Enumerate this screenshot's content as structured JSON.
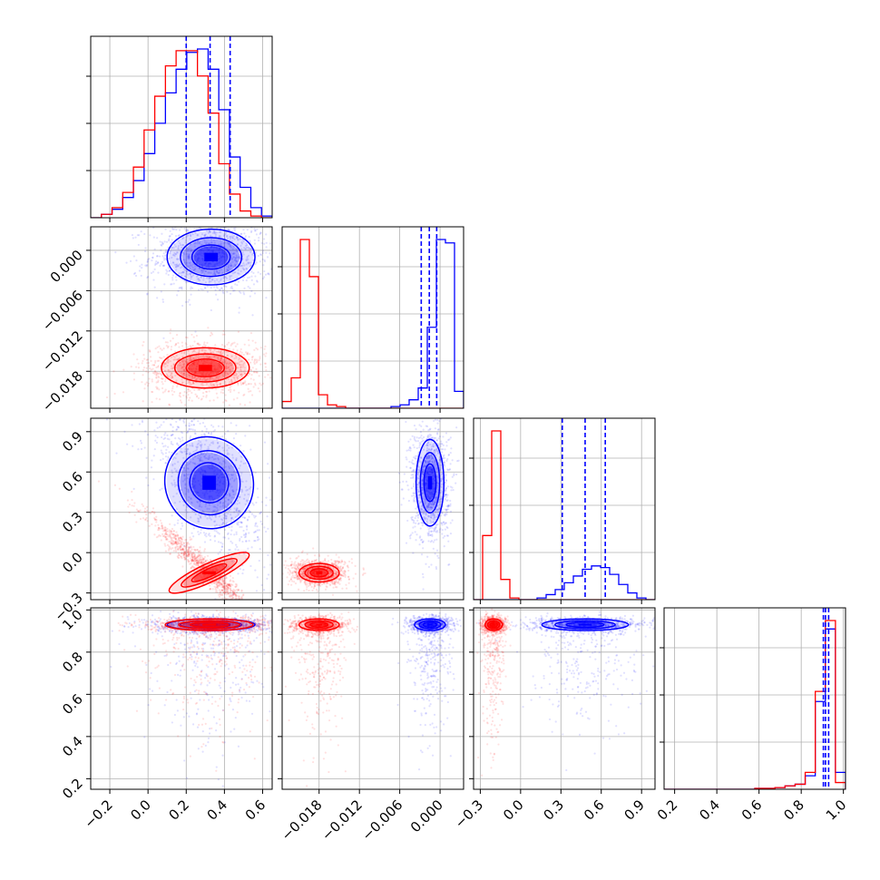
{
  "chart_data": {
    "type": "corner",
    "variables": 4,
    "series": [
      {
        "name": "",
        "color": "#0000ff"
      },
      {
        "name": "",
        "color": "#ff0000"
      }
    ],
    "axes": [
      {
        "range": [
          -0.3,
          0.65
        ],
        "ticks": [
          -0.2,
          0.0,
          0.2,
          0.4,
          0.6
        ],
        "tick_labels": [
          "−0.2",
          "0.0",
          "0.2",
          "0.4",
          "0.6"
        ]
      },
      {
        "range": [
          -0.0235,
          0.0035
        ],
        "ticks": [
          -0.018,
          -0.012,
          -0.006,
          0.0
        ],
        "tick_labels": [
          "−0.018",
          "−0.012",
          "−0.006",
          "0.000"
        ]
      },
      {
        "range": [
          -0.35,
          1.0
        ],
        "ticks": [
          -0.3,
          0.0,
          0.3,
          0.6,
          0.9
        ],
        "tick_labels": [
          "−0.3",
          "0.0",
          "0.3",
          "0.6",
          "0.9"
        ]
      },
      {
        "range": [
          0.15,
          1.01
        ],
        "ticks": [
          0.2,
          0.4,
          0.6,
          0.8,
          1.0
        ],
        "tick_labels": [
          "0.2",
          "0.4",
          "0.6",
          "0.8",
          "1.0"
        ]
      }
    ],
    "histograms": [
      {
        "variable": 0,
        "blue": {
          "values": [
            0,
            0.02,
            0.05,
            0.12,
            0.22,
            0.38,
            0.56,
            0.74,
            0.88,
            0.98,
            1.0,
            0.88,
            0.64,
            0.36,
            0.18,
            0.06,
            0.01
          ],
          "quantiles": [
            0.2,
            0.325,
            0.43
          ]
        },
        "red": {
          "values": [
            0,
            0.02,
            0.06,
            0.15,
            0.3,
            0.52,
            0.72,
            0.9,
            0.99,
            0.99,
            0.84,
            0.62,
            0.32,
            0.14,
            0.04,
            0.01,
            0.0
          ]
        }
      },
      {
        "variable": 1,
        "blue": {
          "values": [
            0,
            0,
            0,
            0,
            0,
            0,
            0,
            0,
            0,
            0,
            0,
            0,
            0.01,
            0.02,
            0.05,
            0.12,
            0.48,
            1.0,
            0.98,
            0.1
          ],
          "quantiles": [
            -0.0028,
            -0.0016,
            -0.0005
          ]
        },
        "red": {
          "values": [
            0.04,
            0.18,
            1.0,
            0.78,
            0.08,
            0.02,
            0.01,
            0,
            0,
            0,
            0,
            0,
            0,
            0,
            0,
            0,
            0,
            0,
            0,
            0
          ]
        }
      },
      {
        "variable": 2,
        "blue": {
          "values": [
            0,
            0,
            0,
            0,
            0,
            0,
            0,
            0.01,
            0.03,
            0.06,
            0.1,
            0.14,
            0.18,
            0.2,
            0.19,
            0.15,
            0.09,
            0.04,
            0.01,
            0
          ],
          "quantiles": [
            0.31,
            0.48,
            0.63
          ]
        },
        "red": {
          "values": [
            0,
            0.38,
            1.0,
            0.12,
            0.01,
            0,
            0,
            0,
            0,
            0,
            0,
            0,
            0,
            0,
            0,
            0,
            0,
            0,
            0,
            0
          ]
        }
      },
      {
        "variable": 3,
        "blue": {
          "values": [
            0,
            0,
            0,
            0,
            0,
            0,
            0,
            0,
            0,
            0.005,
            0.005,
            0.01,
            0.02,
            0.03,
            0.08,
            0.52,
            0.95,
            0.1
          ],
          "quantiles": [
            0.905,
            0.915,
            0.93
          ]
        },
        "red": {
          "values": [
            0,
            0,
            0,
            0,
            0,
            0,
            0,
            0,
            0,
            0.005,
            0.005,
            0.01,
            0.02,
            0.03,
            0.1,
            0.58,
            1.0,
            0.04
          ]
        }
      }
    ],
    "scatter_2d": [
      {
        "x": 0,
        "y": 1,
        "blue_center": [
          0.33,
          -0.001
        ],
        "red_center": [
          0.3,
          -0.0175
        ]
      },
      {
        "x": 0,
        "y": 2,
        "blue_center": [
          0.32,
          0.52
        ],
        "red_center": [
          0.32,
          -0.15
        ]
      },
      {
        "x": 1,
        "y": 2,
        "blue_center": [
          -0.0015,
          0.52
        ],
        "red_center": [
          -0.018,
          -0.15
        ]
      },
      {
        "x": 0,
        "y": 3,
        "blue_center": [
          0.33,
          0.93
        ],
        "red_center": [
          0.32,
          0.93
        ]
      },
      {
        "x": 1,
        "y": 3,
        "blue_center": [
          -0.0015,
          0.93
        ],
        "red_center": [
          -0.018,
          0.93
        ]
      },
      {
        "x": 2,
        "y": 3,
        "blue_center": [
          0.48,
          0.93
        ],
        "red_center": [
          -0.2,
          0.93
        ]
      }
    ],
    "grid": true
  }
}
